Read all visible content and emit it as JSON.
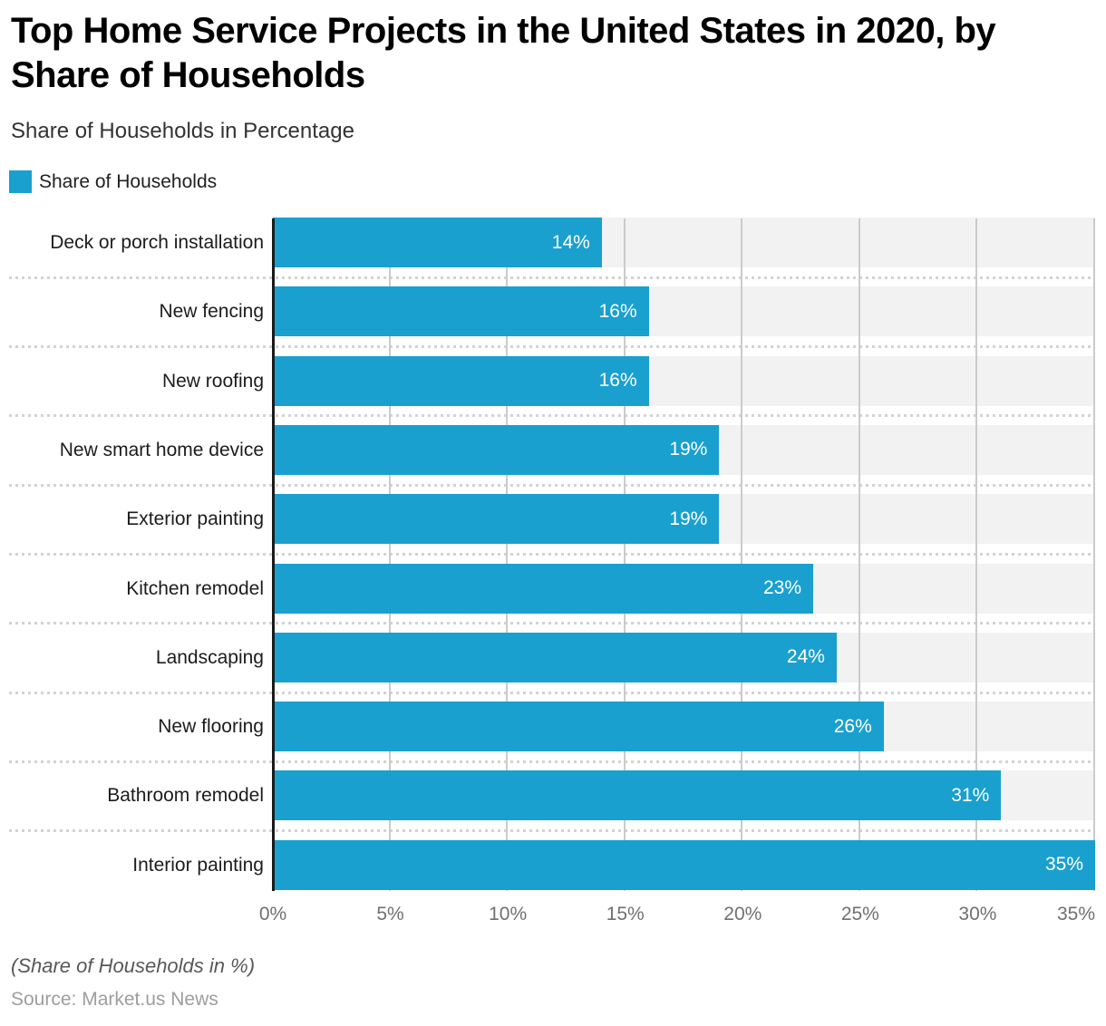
{
  "header": {
    "title": "Top Home Service Projects in the United States in 2020, by Share of Households",
    "subtitle": "Share of Households in Percentage"
  },
  "legend": {
    "label": "Share of Households"
  },
  "chart_data": {
    "type": "bar",
    "orientation": "horizontal",
    "title": "Top Home Service Projects in the United States in 2020, by Share of Households",
    "series_name": "Share of Households",
    "categories": [
      "Deck or porch installation",
      "New fencing",
      "New roofing",
      "New smart home device",
      "Exterior painting",
      "Kitchen remodel",
      "Landscaping",
      "New flooring",
      "Bathroom remodel",
      "Interior painting"
    ],
    "values": [
      14,
      16,
      16,
      19,
      19,
      23,
      24,
      26,
      31,
      35
    ],
    "value_labels": [
      "14%",
      "16%",
      "16%",
      "19%",
      "19%",
      "23%",
      "24%",
      "26%",
      "31%",
      "35%"
    ],
    "x_ticks": [
      "0%",
      "5%",
      "10%",
      "15%",
      "20%",
      "25%",
      "30%",
      "35%"
    ],
    "xlim": [
      0,
      35
    ],
    "xlabel": "",
    "ylabel": "",
    "grid": true,
    "legend_position": "top-left",
    "bar_color": "#1AA0CF",
    "track_color": "#F2F2F2",
    "gridline_color": "#CBCBCB",
    "value_label_color": "#FFFFFF"
  },
  "footer": {
    "note": "(Share of Households in %)",
    "source": "Source: Market.us News"
  }
}
